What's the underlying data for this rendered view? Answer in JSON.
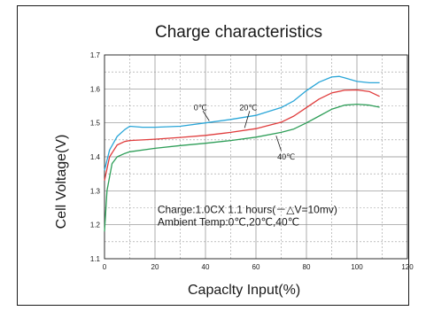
{
  "chart_data": {
    "type": "line",
    "title": "Charge characteristics",
    "xlabel": "Capaclty Input(%)",
    "ylabel": "Cell Voltage(V)",
    "xlim": [
      0,
      120
    ],
    "ylim": [
      1.1,
      1.7
    ],
    "xticks": [
      "0",
      "20",
      "40",
      "60",
      "80",
      "100",
      "120"
    ],
    "yticks": [
      "1.1",
      "1.2",
      "1.3",
      "1.4",
      "1.5",
      "1.6",
      "1.7"
    ],
    "grid": true,
    "series": [
      {
        "name": "0℃",
        "color": "#2aa6d8",
        "x": [
          0,
          2,
          5,
          8,
          10,
          15,
          20,
          30,
          40,
          50,
          60,
          70,
          75,
          80,
          85,
          90,
          93,
          95,
          100,
          105,
          109
        ],
        "y": [
          1.36,
          1.42,
          1.46,
          1.48,
          1.49,
          1.487,
          1.487,
          1.49,
          1.5,
          1.51,
          1.522,
          1.545,
          1.565,
          1.595,
          1.62,
          1.635,
          1.637,
          1.633,
          1.622,
          1.618,
          1.618
        ]
      },
      {
        "name": "20℃",
        "color": "#e03c3c",
        "x": [
          0,
          2,
          5,
          8,
          10,
          20,
          30,
          40,
          50,
          60,
          70,
          75,
          80,
          85,
          90,
          95,
          100,
          105,
          109
        ],
        "y": [
          1.33,
          1.4,
          1.435,
          1.445,
          1.448,
          1.452,
          1.457,
          1.463,
          1.472,
          1.483,
          1.502,
          1.52,
          1.545,
          1.57,
          1.588,
          1.596,
          1.597,
          1.592,
          1.578
        ]
      },
      {
        "name": "40℃",
        "color": "#2e9e58",
        "x": [
          0,
          1,
          3,
          5,
          8,
          10,
          20,
          30,
          40,
          50,
          60,
          70,
          75,
          80,
          85,
          90,
          95,
          100,
          105,
          109
        ],
        "y": [
          1.18,
          1.3,
          1.38,
          1.4,
          1.41,
          1.415,
          1.425,
          1.433,
          1.44,
          1.448,
          1.458,
          1.472,
          1.482,
          1.5,
          1.52,
          1.54,
          1.552,
          1.555,
          1.552,
          1.546
        ]
      }
    ],
    "annotations": [
      {
        "text": "0℃",
        "at": [
          38,
          1.545
        ]
      },
      {
        "text": "20℃",
        "at": [
          57,
          1.545
        ]
      },
      {
        "text": "40℃",
        "at": [
          72,
          1.4
        ]
      },
      {
        "text": "Charge:1.0CX 1.1 hours(－△V=10mv)",
        "at": [
          21,
          1.245
        ]
      },
      {
        "text": "Ambient Temp:0℃,20℃,40℃",
        "at": [
          21,
          1.208
        ]
      }
    ]
  }
}
